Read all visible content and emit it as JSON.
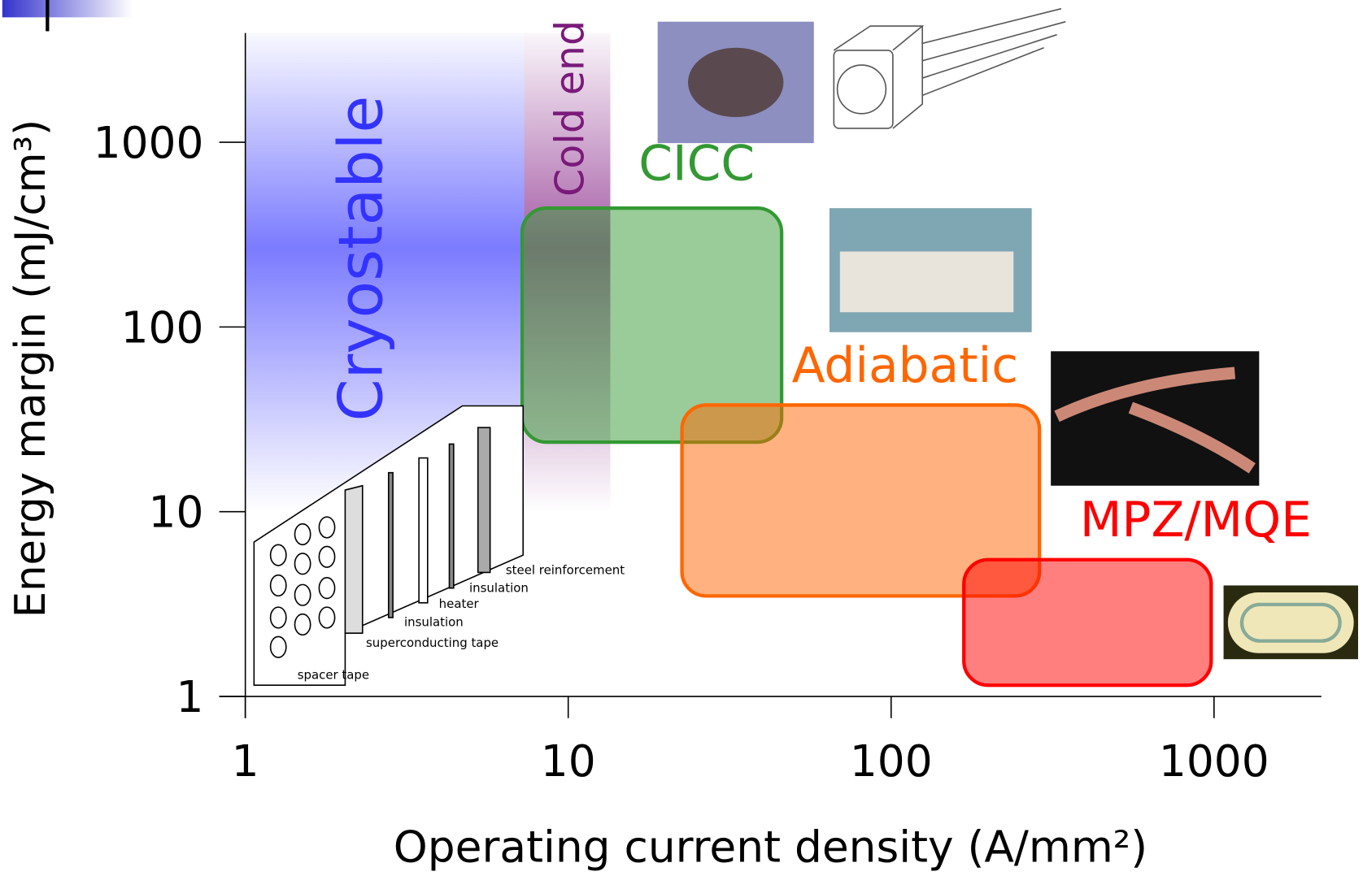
{
  "chart_data": {
    "type": "region",
    "x_label": "Operating current density (A/mm²)",
    "y_label": "Energy margin (mJ/cm³)",
    "xscale": "log",
    "yscale": "log",
    "xlim": [
      1,
      2150
    ],
    "ylim": [
      1,
      3900
    ],
    "xticks": [
      1,
      10,
      100,
      1000
    ],
    "yticks": [
      1,
      10,
      100,
      1000
    ],
    "series": [
      {
        "name": "Cryostable",
        "style": "band",
        "color": "#3333ff",
        "x": [
          1,
          7.3
        ],
        "y": [
          10,
          3900
        ]
      },
      {
        "name": "Cold end",
        "style": "band",
        "color": "#7a1a7a",
        "x": [
          7.3,
          13.5
        ],
        "y": [
          10,
          3900
        ]
      },
      {
        "name": "CICC",
        "style": "box",
        "color": "#339933",
        "x": [
          7.2,
          45.8
        ],
        "y": [
          23.8,
          440
        ]
      },
      {
        "name": "Adiabatic",
        "style": "box",
        "color": "#ff6600",
        "x": [
          22.5,
          288
        ],
        "y": [
          3.5,
          37.8
        ]
      },
      {
        "name": "MPZ/MQE",
        "style": "box",
        "color": "#ff0000",
        "x": [
          168,
          980
        ],
        "y": [
          1.15,
          5.5
        ]
      }
    ],
    "annotations": [
      "steel reinforcement",
      "insulation",
      "heater",
      "insulation",
      "superconducting tape",
      "spacer tape"
    ]
  }
}
